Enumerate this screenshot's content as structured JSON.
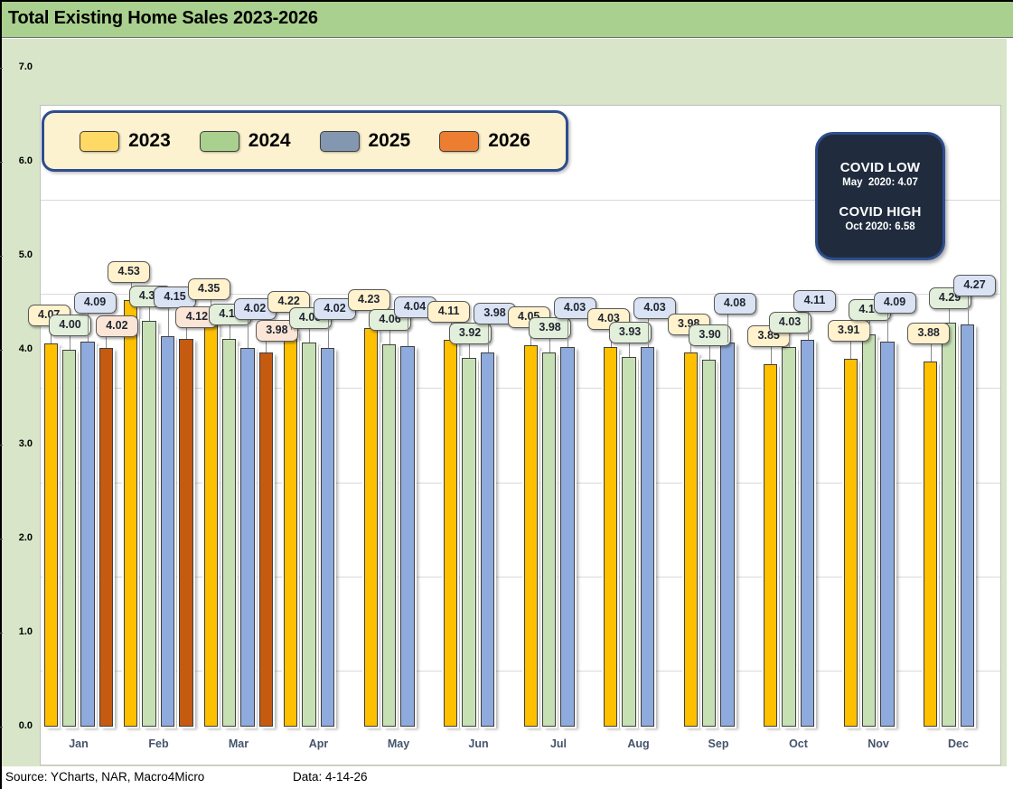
{
  "title": "Total Existing Home Sales 2023-2026",
  "legend": {
    "items": [
      {
        "label": "2023",
        "swatch_color": "#FFD966"
      },
      {
        "label": "2024",
        "swatch_color": "#A9D08E"
      },
      {
        "label": "2025",
        "swatch_color": "#8497B0"
      },
      {
        "label": "2026",
        "swatch_color": "#ED7D31"
      }
    ]
  },
  "covid_box": {
    "low_label": "COVID LOW",
    "low_value": "May  2020: 4.07",
    "high_label": "COVID HIGH",
    "high_value": "Oct 2020: 6.58"
  },
  "footer": {
    "source": "Source: YCharts, NAR, Macro4Micro",
    "data_date": "Data: 4-14-26"
  },
  "chart_data": {
    "type": "bar",
    "title": "Total Existing Home Sales 2023-2026",
    "xlabel": "",
    "ylabel": "",
    "ylim": [
      0.0,
      7.0
    ],
    "ytick_step": 1.0,
    "grid": true,
    "legend_position": "top-left",
    "categories": [
      "Jan",
      "Feb",
      "Mar",
      "Apr",
      "May",
      "Jun",
      "Jul",
      "Aug",
      "Sep",
      "Oct",
      "Nov",
      "Dec"
    ],
    "series": [
      {
        "name": "2023",
        "bar_color": "#FFC000",
        "label_fill": "#FFF2CC",
        "values": [
          4.07,
          4.53,
          4.35,
          4.22,
          4.23,
          4.11,
          4.05,
          4.03,
          3.98,
          3.85,
          3.91,
          3.88
        ],
        "labels": [
          "4.07",
          "4.53",
          "4.35",
          "4.22",
          "4.23",
          "4.11",
          "4.05",
          "4.03",
          "3.98",
          "3.85",
          "3.91",
          "3.88"
        ]
      },
      {
        "name": "2024",
        "bar_color": "#C6E0B4",
        "label_fill": "#E2EFDA",
        "values": [
          4.0,
          4.31,
          4.12,
          4.08,
          4.06,
          3.92,
          3.98,
          3.93,
          3.9,
          4.03,
          4.17,
          4.29
        ],
        "labels": [
          "4.00",
          "4.31",
          "4.12",
          "4.08",
          "4.06",
          "3.92",
          "3.98",
          "3.93",
          "3.90",
          "4.03",
          "4.17",
          "4.29"
        ]
      },
      {
        "name": "2025",
        "bar_color": "#8FAADC",
        "label_fill": "#DAE3F3",
        "values": [
          4.09,
          4.15,
          4.02,
          4.02,
          4.04,
          3.98,
          4.03,
          4.03,
          4.08,
          4.11,
          4.09,
          4.27
        ],
        "labels": [
          "4.09",
          "4.15",
          "4.02",
          "4.02",
          "4.04",
          "3.98",
          "4.03",
          "4.03",
          "4.08",
          "4.11",
          "4.09",
          "4.27"
        ]
      },
      {
        "name": "2026",
        "bar_color": "#C55A11",
        "label_fill": "#FBE5D6",
        "values": [
          4.02,
          4.12,
          3.98,
          null,
          null,
          null,
          null,
          null,
          null,
          null,
          null,
          null
        ],
        "labels": [
          "4.02",
          "4.12",
          "3.98",
          null,
          null,
          null,
          null,
          null,
          null,
          null,
          null,
          null
        ]
      }
    ],
    "annotations": [
      {
        "text": "COVID LOW May 2020: 4.07"
      },
      {
        "text": "COVID HIGH Oct 2020: 6.58"
      }
    ]
  }
}
